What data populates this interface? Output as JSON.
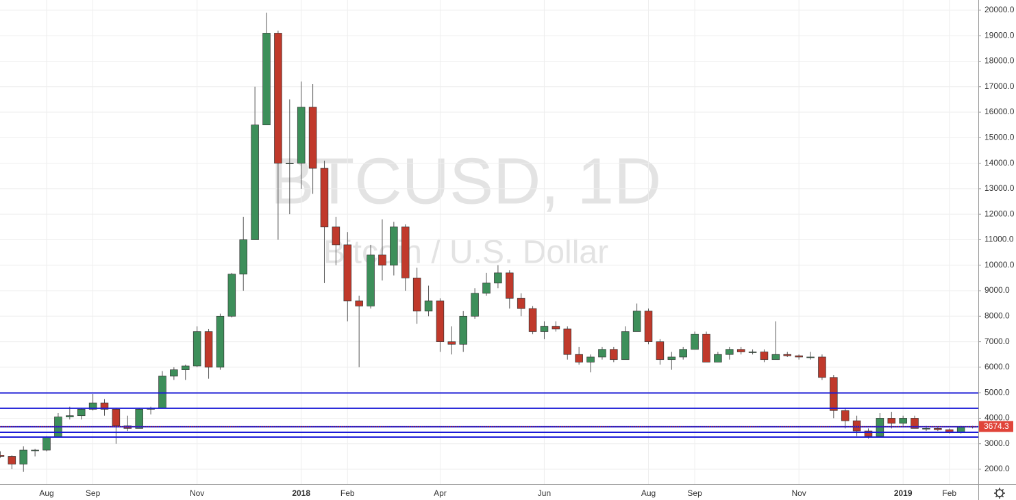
{
  "chart_data": {
    "type": "candlestick",
    "title": "BTCUSD, 1D",
    "subtitle": "Bitcoin / U.S. Dollar",
    "categories": [
      null,
      null,
      null,
      null,
      "Aug",
      null,
      null,
      null,
      "Sep",
      null,
      null,
      null,
      null,
      null,
      null,
      null,
      null,
      "Nov",
      null,
      null,
      null,
      null,
      null,
      null,
      null,
      null,
      "2018",
      null,
      null,
      null,
      "Feb",
      null,
      null,
      null,
      null,
      null,
      null,
      null,
      "Apr",
      null,
      null,
      null,
      null,
      null,
      null,
      null,
      null,
      "Jun",
      null,
      null,
      null,
      null,
      null,
      null,
      null,
      null,
      "Aug",
      null,
      null,
      null,
      "Sep",
      null,
      null,
      null,
      null,
      null,
      null,
      null,
      null,
      "Nov",
      null,
      null,
      null,
      null,
      null,
      null,
      null,
      null,
      "2019",
      null,
      null,
      null,
      "Feb",
      null,
      null
    ],
    "open": [
      2550,
      2500,
      2200,
      2750,
      2750,
      3250,
      4050,
      4100,
      4350,
      4600,
      4350,
      3700,
      3600,
      4350,
      4400,
      5650,
      5900,
      6050,
      7400,
      6000,
      8000,
      9650,
      11000,
      15500,
      19100,
      14000,
      14000,
      16200,
      13800,
      11500,
      10800,
      8600,
      8400,
      10400,
      10000,
      11500,
      9500,
      8200,
      8600,
      7000,
      6900,
      8000,
      8900,
      9300,
      9700,
      8700,
      8300,
      7400,
      7600,
      7500,
      6500,
      6200,
      6400,
      6700,
      6300,
      7400,
      8200,
      7000,
      6300,
      6400,
      6700,
      7300,
      6200,
      6500,
      6700,
      6600,
      6600,
      6300,
      6500,
      6450,
      6400,
      6400,
      5600,
      4300,
      3900,
      3500,
      3300,
      4000,
      3800,
      4000,
      3600,
      3600,
      3550,
      3450,
      3650
    ],
    "high": [
      2700,
      2550,
      2900,
      2800,
      3300,
      4200,
      4450,
      4400,
      4950,
      4750,
      4400,
      4100,
      4400,
      4450,
      5850,
      6000,
      6100,
      7600,
      7500,
      8100,
      9700,
      11900,
      17000,
      19900,
      19200,
      16500,
      17200,
      17100,
      14100,
      11900,
      11300,
      8800,
      10800,
      11800,
      11700,
      11600,
      9900,
      9200,
      8700,
      7600,
      8200,
      9100,
      9700,
      10000,
      9800,
      8900,
      8400,
      7800,
      7800,
      7600,
      6800,
      6500,
      6800,
      6800,
      7600,
      8500,
      8300,
      7100,
      6600,
      6800,
      7400,
      7400,
      6600,
      6800,
      6800,
      6700,
      6700,
      7800,
      6600,
      6500,
      6600,
      6500,
      5700,
      4400,
      4100,
      3600,
      4200,
      4250,
      4100,
      4100,
      3700,
      3650,
      3600,
      3700,
      3700
    ],
    "low": [
      2450,
      2000,
      1900,
      2500,
      2700,
      3250,
      3950,
      3950,
      4300,
      4100,
      3000,
      3500,
      3600,
      4150,
      4400,
      5500,
      5500,
      6000,
      5550,
      5900,
      7950,
      9000,
      11000,
      15500,
      11000,
      12000,
      13000,
      12800,
      9300,
      10000,
      7800,
      6000,
      8300,
      9400,
      9600,
      9000,
      7700,
      8000,
      6600,
      6500,
      6600,
      7900,
      8800,
      9100,
      8300,
      8000,
      7300,
      7100,
      7400,
      6300,
      6100,
      5800,
      6300,
      6200,
      6300,
      7400,
      6900,
      6100,
      5900,
      6300,
      6700,
      6200,
      6200,
      6300,
      6500,
      6500,
      6200,
      6300,
      6400,
      6300,
      6300,
      5500,
      4000,
      3600,
      3300,
      3200,
      3300,
      3600,
      3700,
      3600,
      3500,
      3500,
      3400,
      3400,
      3600
    ],
    "close": [
      2500,
      2200,
      2750,
      2750,
      3250,
      4050,
      4100,
      4350,
      4600,
      4350,
      3700,
      3600,
      4350,
      4400,
      5650,
      5900,
      6050,
      7400,
      6000,
      8000,
      9650,
      11000,
      15500,
      19100,
      14000,
      14000,
      16200,
      13800,
      11500,
      10800,
      8600,
      8400,
      10400,
      10000,
      11500,
      9500,
      8200,
      8600,
      7000,
      6900,
      8000,
      8900,
      9300,
      9700,
      8700,
      8300,
      7400,
      7600,
      7500,
      6500,
      6200,
      6400,
      6700,
      6300,
      7400,
      8200,
      7000,
      6300,
      6400,
      6700,
      7300,
      6200,
      6500,
      6700,
      6600,
      6600,
      6300,
      6500,
      6450,
      6400,
      6400,
      5600,
      4300,
      3900,
      3500,
      3300,
      4000,
      3800,
      4000,
      3600,
      3600,
      3550,
      3450,
      3650,
      3674.3
    ],
    "up_color": "#3d8f5a",
    "down_color": "#c0392b",
    "horizontal_lines": {
      "color": "#1a1ad6",
      "values": [
        4990,
        4390,
        3665,
        3450,
        3260
      ]
    },
    "ylim": [
      1410,
      20400
    ],
    "yticks": [
      {
        "value": 2000,
        "label": "2000.0"
      },
      {
        "value": 3000,
        "label": "3000.0"
      },
      {
        "value": 4000,
        "label": "4000.0"
      },
      {
        "value": 5000,
        "label": "5000.0"
      },
      {
        "value": 6000,
        "label": "6000.0"
      },
      {
        "value": 7000,
        "label": "7000.0"
      },
      {
        "value": 8000,
        "label": "8000.0"
      },
      {
        "value": 9000,
        "label": "9000.0"
      },
      {
        "value": 10000,
        "label": "10000.0"
      },
      {
        "value": 11000,
        "label": "11000.0"
      },
      {
        "value": 12000,
        "label": "12000.0"
      },
      {
        "value": 13000,
        "label": "13000.0"
      },
      {
        "value": 14000,
        "label": "14000.0"
      },
      {
        "value": 15000,
        "label": "15000.0"
      },
      {
        "value": 16000,
        "label": "16000.0"
      },
      {
        "value": 17000,
        "label": "17000.0"
      },
      {
        "value": 18000,
        "label": "18000.0"
      },
      {
        "value": 19000,
        "label": "19000.0"
      },
      {
        "value": 20000,
        "label": "20000.0"
      }
    ],
    "grid": true
  }
}
